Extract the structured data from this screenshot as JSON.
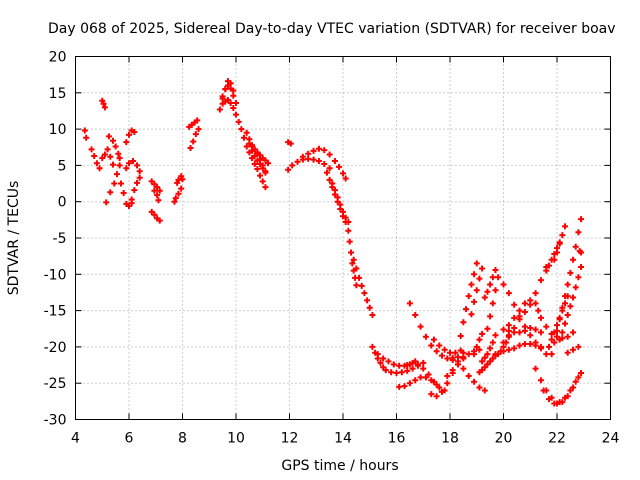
{
  "chart_data": {
    "type": "scatter",
    "title": "Day 068 of 2025, Sidereal Day-to-day VTEC variation (SDTVAR) for receiver boav",
    "xlabel": "GPS time / hours",
    "ylabel": "SDTVAR / TECUs",
    "xlim": [
      4,
      24
    ],
    "ylim": [
      -30,
      20
    ],
    "xticks": [
      4,
      6,
      8,
      10,
      12,
      14,
      16,
      18,
      20,
      22,
      24
    ],
    "yticks": [
      -30,
      -25,
      -20,
      -15,
      -10,
      -5,
      0,
      5,
      10,
      15,
      20
    ],
    "grid": true,
    "marker": "plus",
    "color": "#ff0000",
    "series": [
      {
        "name": "s01",
        "x": [
          4.35,
          4.4
        ],
        "y": [
          9.8,
          8.8
        ]
      },
      {
        "name": "s02",
        "x": [
          4.6,
          4.7,
          4.8,
          4.9
        ],
        "y": [
          7.2,
          6.3,
          5.3,
          4.6
        ]
      },
      {
        "name": "s03",
        "x": [
          5.0,
          5.05,
          5.1
        ],
        "y": [
          13.9,
          13.5,
          13.0
        ]
      },
      {
        "name": "s04",
        "x": [
          5.0,
          5.1,
          5.2,
          5.3,
          5.4
        ],
        "y": [
          6.0,
          6.5,
          7.2,
          6.2,
          5.1
        ]
      },
      {
        "name": "s05",
        "x": [
          5.15,
          5.3,
          5.45,
          5.55,
          5.65
        ],
        "y": [
          -0.1,
          1.3,
          2.5,
          3.8,
          5.0
        ]
      },
      {
        "name": "s06",
        "x": [
          5.25,
          5.4,
          5.5,
          5.6,
          5.65
        ],
        "y": [
          9.0,
          8.4,
          7.6,
          6.6,
          6.0
        ]
      },
      {
        "name": "s07",
        "x": [
          5.7,
          5.8,
          5.9,
          6.0,
          6.1
        ],
        "y": [
          2.5,
          1.2,
          -0.3,
          -0.6,
          -0.2
        ]
      },
      {
        "name": "s08",
        "x": [
          5.9,
          6.0,
          6.1,
          6.2
        ],
        "y": [
          8.2,
          9.2,
          9.8,
          9.6
        ]
      },
      {
        "name": "s09",
        "x": [
          5.9,
          6.0,
          6.15,
          6.3,
          6.4
        ],
        "y": [
          4.6,
          5.3,
          5.6,
          5.0,
          4.2
        ]
      },
      {
        "name": "s10",
        "x": [
          6.1,
          6.2,
          6.3,
          6.4
        ],
        "y": [
          0.3,
          1.6,
          2.6,
          3.3
        ]
      },
      {
        "name": "s11",
        "x": [
          6.85,
          6.95,
          7.05,
          7.15
        ],
        "y": [
          2.8,
          2.4,
          2.0,
          1.5
        ]
      },
      {
        "name": "s12",
        "x": [
          6.85,
          6.95,
          7.05,
          7.15
        ],
        "y": [
          -1.4,
          -1.8,
          -2.3,
          -2.6
        ]
      },
      {
        "name": "s13",
        "x": [
          6.95,
          7.05,
          7.1
        ],
        "y": [
          1.5,
          0.9,
          0.2
        ]
      },
      {
        "name": "s14",
        "x": [
          7.7,
          7.75,
          7.85,
          7.95
        ],
        "y": [
          0.0,
          0.5,
          1.1,
          1.8
        ]
      },
      {
        "name": "s15",
        "x": [
          7.8,
          7.85,
          7.95,
          8.0
        ],
        "y": [
          2.6,
          3.0,
          3.5,
          3.1
        ]
      },
      {
        "name": "s16",
        "x": [
          8.3,
          8.4,
          8.5,
          8.6
        ],
        "y": [
          7.4,
          8.3,
          9.3,
          10.0
        ]
      },
      {
        "name": "s17",
        "x": [
          8.25,
          8.35,
          8.45,
          8.55
        ],
        "y": [
          10.3,
          10.6,
          10.9,
          11.2
        ]
      },
      {
        "name": "s18",
        "x": [
          9.4,
          9.5,
          9.6,
          9.7,
          9.8,
          9.9
        ],
        "y": [
          12.7,
          14.2,
          15.5,
          16.6,
          16.3,
          15.3
        ]
      },
      {
        "name": "s19",
        "x": [
          9.5,
          9.6,
          9.7,
          9.8,
          9.9,
          10.0
        ],
        "y": [
          14.5,
          15.5,
          16.0,
          15.6,
          14.6,
          13.6
        ]
      },
      {
        "name": "s20",
        "x": [
          9.5,
          9.6,
          9.7,
          9.8,
          9.9
        ],
        "y": [
          13.5,
          13.8,
          14.0,
          13.6,
          12.9
        ]
      },
      {
        "name": "s21",
        "x": [
          10.0,
          10.1,
          10.2,
          10.3,
          10.4,
          10.5,
          10.6,
          10.7,
          10.8,
          10.9,
          11.0,
          11.1
        ],
        "y": [
          12.0,
          11.0,
          10.0,
          8.8,
          7.6,
          6.8,
          6.0,
          5.2,
          4.5,
          3.6,
          2.8,
          2.0
        ]
      },
      {
        "name": "s22",
        "x": [
          10.4,
          10.5,
          10.6,
          10.7,
          10.8,
          10.9,
          11.0,
          11.1
        ],
        "y": [
          9.5,
          8.6,
          7.8,
          7.2,
          6.6,
          5.8,
          5.0,
          4.2
        ]
      },
      {
        "name": "s23",
        "x": [
          10.5,
          10.6,
          10.7,
          10.8,
          10.9,
          11.0,
          11.1,
          11.2
        ],
        "y": [
          8.0,
          7.6,
          7.2,
          6.8,
          6.4,
          6.0,
          5.7,
          5.3
        ]
      },
      {
        "name": "s24",
        "x": [
          10.6,
          10.7,
          10.8,
          10.9,
          11.0,
          11.1
        ],
        "y": [
          7.0,
          6.3,
          5.7,
          5.2,
          4.6,
          4.0
        ]
      },
      {
        "name": "s25",
        "x": [
          11.95,
          12.05
        ],
        "y": [
          8.2,
          8.0
        ]
      },
      {
        "name": "s26",
        "x": [
          11.95,
          12.1,
          12.3,
          12.5,
          12.7,
          12.9,
          13.1,
          13.3,
          13.5
        ],
        "y": [
          4.4,
          5.0,
          5.5,
          5.8,
          5.9,
          5.8,
          5.6,
          5.2,
          4.6
        ]
      },
      {
        "name": "s27",
        "x": [
          12.5,
          12.7,
          12.9,
          13.1,
          13.3,
          13.5,
          13.7,
          13.85,
          14.0,
          14.1
        ],
        "y": [
          6.2,
          6.6,
          7.0,
          7.3,
          7.1,
          6.5,
          5.6,
          4.8,
          3.9,
          3.2
        ]
      },
      {
        "name": "s28",
        "x": [
          13.4,
          13.5,
          13.6,
          13.7,
          13.8,
          13.9,
          14.0,
          14.1
        ],
        "y": [
          4.0,
          3.0,
          2.0,
          1.0,
          0.0,
          -1.0,
          -2.0,
          -2.8
        ]
      },
      {
        "name": "s29",
        "x": [
          13.6,
          13.7,
          13.8,
          13.9,
          14.0,
          14.1,
          14.2
        ],
        "y": [
          2.5,
          1.6,
          0.6,
          -0.4,
          -1.4,
          -2.2,
          -2.8
        ]
      },
      {
        "name": "s30",
        "x": [
          14.2,
          14.25,
          14.3,
          14.35,
          14.4,
          14.45,
          14.5
        ],
        "y": [
          -4.0,
          -5.5,
          -7.0,
          -8.5,
          -9.5,
          -10.5,
          -11.5
        ]
      },
      {
        "name": "s31",
        "x": [
          14.4,
          14.5,
          14.6,
          14.7,
          14.8,
          14.9,
          15.0,
          15.1
        ],
        "y": [
          -8.0,
          -9.2,
          -10.5,
          -11.6,
          -12.6,
          -13.6,
          -14.6,
          -15.6
        ]
      },
      {
        "name": "s32",
        "x": [
          15.1,
          15.2,
          15.3,
          15.4,
          15.5,
          15.6,
          15.8,
          16.0,
          16.2,
          16.4,
          16.6,
          16.8,
          17.0
        ],
        "y": [
          -20.0,
          -20.8,
          -21.6,
          -22.2,
          -22.8,
          -23.2,
          -23.5,
          -23.6,
          -23.5,
          -23.3,
          -23.0,
          -22.6,
          -22.2
        ]
      },
      {
        "name": "s33",
        "x": [
          15.3,
          15.5,
          15.7,
          15.9,
          16.1,
          16.3,
          16.5,
          16.7
        ],
        "y": [
          -21.0,
          -21.6,
          -22.0,
          -22.4,
          -22.6,
          -22.6,
          -22.4,
          -22.0
        ]
      },
      {
        "name": "s34",
        "x": [
          16.1,
          16.3,
          16.5,
          16.7,
          16.9,
          17.1,
          17.3,
          17.5
        ],
        "y": [
          -25.5,
          -25.4,
          -25.0,
          -24.6,
          -24.2,
          -24.2,
          -24.6,
          -25.2
        ]
      },
      {
        "name": "s35",
        "x": [
          16.4,
          16.6,
          16.8,
          17.0,
          17.2,
          17.4,
          17.6,
          17.8
        ],
        "y": [
          -22.5,
          -22.2,
          -22.4,
          -23.0,
          -23.8,
          -24.8,
          -25.6,
          -26.0
        ]
      },
      {
        "name": "s36",
        "x": [
          16.5,
          16.7,
          16.9,
          17.1,
          17.3,
          17.5,
          17.7,
          17.9,
          18.1,
          18.3,
          18.5
        ],
        "y": [
          -14.0,
          -15.6,
          -17.2,
          -18.6,
          -19.8,
          -20.6,
          -21.2,
          -21.6,
          -21.8,
          -21.4,
          -20.8
        ]
      },
      {
        "name": "s37",
        "x": [
          17.3,
          17.5,
          17.7,
          17.9,
          18.1,
          18.3,
          18.5
        ],
        "y": [
          -26.5,
          -26.8,
          -26.2,
          -25.0,
          -23.6,
          -22.4,
          -21.4
        ]
      },
      {
        "name": "s38",
        "x": [
          17.4,
          17.6,
          17.8,
          18.0,
          18.2,
          18.4
        ],
        "y": [
          -19.0,
          -19.8,
          -20.4,
          -20.8,
          -20.8,
          -20.5
        ]
      },
      {
        "name": "s39",
        "x": [
          17.9,
          18.1,
          18.3,
          18.5,
          18.7,
          18.9,
          19.1
        ],
        "y": [
          -24.0,
          -23.2,
          -22.4,
          -21.6,
          -21.0,
          -20.6,
          -20.4
        ]
      },
      {
        "name": "s40",
        "x": [
          18.1,
          18.3,
          18.5,
          18.7,
          18.9,
          19.1,
          19.3
        ],
        "y": [
          -21.5,
          -22.0,
          -23.0,
          -24.0,
          -24.8,
          -25.6,
          -26.0
        ]
      },
      {
        "name": "s41",
        "x": [
          18.4,
          18.5,
          18.6,
          18.7,
          18.8,
          18.9,
          19.0
        ],
        "y": [
          -18.5,
          -16.6,
          -14.8,
          -13.0,
          -11.4,
          -10.0,
          -8.5
        ]
      },
      {
        "name": "s42",
        "x": [
          18.8,
          18.9,
          19.0,
          19.1,
          19.2
        ],
        "y": [
          -15.5,
          -13.8,
          -12.2,
          -10.6,
          -9.2
        ]
      },
      {
        "name": "s43",
        "x": [
          18.9,
          19.0,
          19.1,
          19.2
        ],
        "y": [
          -21.0,
          -20.0,
          -19.0,
          -18.2
        ]
      },
      {
        "name": "s44",
        "x": [
          19.1,
          19.2,
          19.3,
          19.4,
          19.5,
          19.6,
          19.7
        ],
        "y": [
          -23.5,
          -23.2,
          -22.8,
          -22.4,
          -22.0,
          -21.6,
          -21.2
        ]
      },
      {
        "name": "s45",
        "x": [
          19.2,
          19.3,
          19.4,
          19.5,
          19.6,
          19.7
        ],
        "y": [
          -22.0,
          -21.5,
          -21.0,
          -20.2,
          -19.4,
          -18.4
        ]
      },
      {
        "name": "s46",
        "x": [
          19.4,
          19.5,
          19.6,
          19.7,
          19.8
        ],
        "y": [
          -17.5,
          -15.8,
          -14.0,
          -12.2,
          -10.4
        ]
      },
      {
        "name": "s47",
        "x": [
          19.3,
          19.4,
          19.5,
          19.6,
          19.7
        ],
        "y": [
          -13.2,
          -12.4,
          -11.4,
          -10.4,
          -9.4
        ]
      },
      {
        "name": "s48",
        "x": [
          19.7,
          19.8,
          19.9,
          20.0,
          20.1,
          20.2
        ],
        "y": [
          -21.0,
          -21.0,
          -20.6,
          -20.0,
          -19.4,
          -18.6
        ]
      },
      {
        "name": "s49",
        "x": [
          20.0,
          20.2,
          20.4,
          20.6,
          20.8,
          21.0,
          21.2,
          21.4,
          21.6
        ],
        "y": [
          -19.4,
          -18.4,
          -17.4,
          -16.2,
          -15.2,
          -14.2,
          -12.6,
          -10.8,
          -9.0
        ]
      },
      {
        "name": "s50",
        "x": [
          20.2,
          20.4,
          20.6,
          20.8,
          21.0,
          21.2
        ],
        "y": [
          -17.0,
          -16.0,
          -15.0,
          -14.0,
          -13.6,
          -14.0
        ]
      },
      {
        "name": "s51",
        "x": [
          20.0,
          20.2,
          20.4,
          20.6,
          20.8,
          21.0,
          21.2,
          21.4
        ],
        "y": [
          -17.6,
          -17.8,
          -18.0,
          -18.0,
          -17.8,
          -17.4,
          -17.6,
          -18.0
        ]
      },
      {
        "name": "s52",
        "x": [
          20.0,
          20.2,
          20.4,
          20.6,
          20.8,
          21.0,
          21.2,
          21.4,
          21.6
        ],
        "y": [
          -11.4,
          -12.6,
          -14.2,
          -15.8,
          -17.2,
          -18.4,
          -19.4,
          -20.2,
          -21.0
        ]
      },
      {
        "name": "s53",
        "x": [
          20.0,
          20.2,
          20.4,
          20.6,
          20.8,
          21.0,
          21.2,
          21.4
        ],
        "y": [
          -20.6,
          -20.4,
          -20.2,
          -19.8,
          -19.6,
          -19.6,
          -19.8,
          -20.0
        ]
      },
      {
        "name": "s54",
        "x": [
          21.6,
          21.7,
          21.8,
          21.9,
          22.0,
          22.1
        ],
        "y": [
          -9.5,
          -8.8,
          -8.0,
          -7.2,
          -6.4,
          -5.6
        ]
      },
      {
        "name": "s55",
        "x": [
          21.9,
          22.0,
          22.1,
          22.2,
          22.3
        ],
        "y": [
          -8.0,
          -7.0,
          -5.8,
          -4.6,
          -3.4
        ]
      },
      {
        "name": "s56",
        "x": [
          21.3,
          21.4,
          21.6,
          21.8,
          22.0,
          22.2,
          22.4,
          22.6
        ],
        "y": [
          -15.0,
          -16.0,
          -17.2,
          -18.2,
          -18.6,
          -18.8,
          -18.6,
          -18.0
        ]
      },
      {
        "name": "s57",
        "x": [
          21.7,
          21.8,
          21.9,
          22.0,
          22.1,
          22.2,
          22.3,
          22.4
        ],
        "y": [
          -20.0,
          -19.0,
          -18.0,
          -17.0,
          -16.0,
          -15.0,
          -14.0,
          -13.0
        ]
      },
      {
        "name": "s58",
        "x": [
          21.8,
          21.9,
          22.0,
          22.1,
          22.2,
          22.3,
          22.4,
          22.5,
          22.6,
          22.7,
          22.8,
          22.9
        ],
        "y": [
          -21.0,
          -19.4,
          -17.8,
          -16.2,
          -14.6,
          -13.0,
          -11.4,
          -9.8,
          -8.0,
          -6.2,
          -4.2,
          -2.4
        ]
      },
      {
        "name": "s59",
        "x": [
          22.1,
          22.2,
          22.3,
          22.4,
          22.5,
          22.6,
          22.7,
          22.8,
          22.9
        ],
        "y": [
          -19.0,
          -18.0,
          -16.8,
          -15.6,
          -14.4,
          -13.2,
          -11.8,
          -10.4,
          -9.0
        ]
      },
      {
        "name": "s60",
        "x": [
          21.2,
          21.4,
          21.6,
          21.8,
          22.0,
          22.2,
          22.4,
          22.6,
          22.8
        ],
        "y": [
          -23.0,
          -24.6,
          -26.0,
          -27.0,
          -27.8,
          -27.6,
          -26.8,
          -25.6,
          -24.2
        ]
      },
      {
        "name": "s61",
        "x": [
          21.5,
          21.7,
          21.9,
          22.1,
          22.3,
          22.5,
          22.7,
          22.9
        ],
        "y": [
          -26.0,
          -27.2,
          -27.8,
          -27.6,
          -27.0,
          -26.0,
          -24.8,
          -23.6
        ]
      },
      {
        "name": "s62",
        "x": [
          22.4,
          22.6,
          22.8
        ],
        "y": [
          -20.8,
          -20.4,
          -20.0
        ]
      },
      {
        "name": "s63",
        "x": [
          22.85,
          22.9
        ],
        "y": [
          -6.8,
          -7.0
        ]
      }
    ]
  }
}
